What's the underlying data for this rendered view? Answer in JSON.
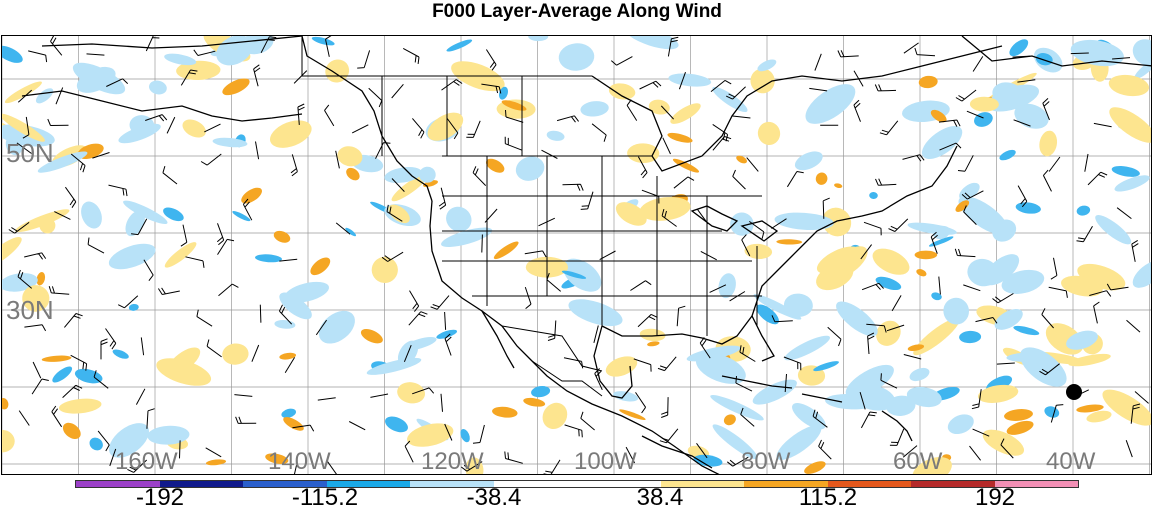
{
  "title": "F000 Layer-Average Along Wind",
  "lat_labels": [
    "50N",
    "30N"
  ],
  "lon_labels": [
    "160W",
    "140W",
    "120W",
    "100W",
    "80W",
    "60W",
    "40W"
  ],
  "colorbar": {
    "colors": [
      "#9b40c8",
      "#101a8c",
      "#2a5fcc",
      "#1aa9e8",
      "#b8e2f8",
      "#ffffff",
      "#ffffff",
      "#fde58f",
      "#f5a623",
      "#e4581c",
      "#b52a2a",
      "#f28fb5"
    ],
    "tick_labels": [
      "-192",
      "-115.2",
      "-38.4",
      "38.4",
      "115.2",
      "192"
    ]
  },
  "map": {
    "projection": "lat-lon",
    "graticule": "grey",
    "fill_colors": {
      "light_blue": "#b8e2f8",
      "blue": "#3fb5ef",
      "light_yellow": "#fde58f",
      "orange": "#f5a623"
    },
    "overlays": [
      "coastlines",
      "country-borders",
      "state-borders",
      "wind-barbs"
    ]
  }
}
